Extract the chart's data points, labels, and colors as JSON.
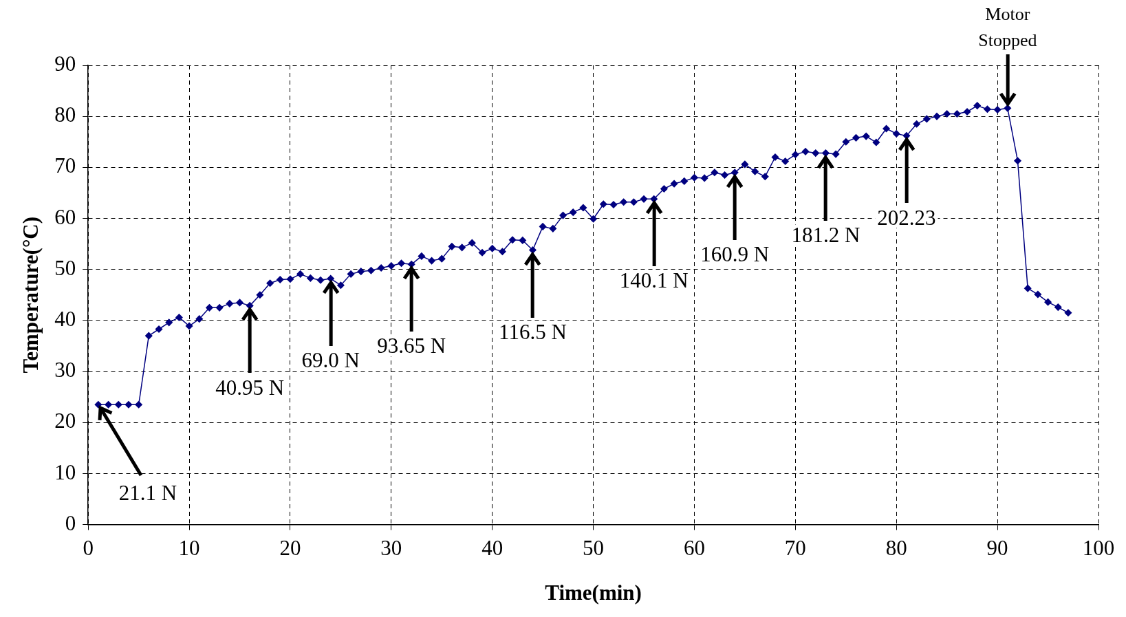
{
  "chart_data": {
    "type": "line",
    "xlabel": "Time(min)",
    "ylabel": "Temperature(°C)",
    "x": [
      1,
      2,
      3,
      4,
      5,
      6,
      7,
      8,
      9,
      10,
      11,
      12,
      13,
      14,
      15,
      16,
      17,
      18,
      19,
      20,
      21,
      22,
      23,
      24,
      25,
      26,
      27,
      28,
      29,
      30,
      31,
      32,
      33,
      34,
      35,
      36,
      37,
      38,
      39,
      40,
      41,
      42,
      43,
      44,
      45,
      46,
      47,
      48,
      49,
      50,
      51,
      52,
      53,
      54,
      55,
      56,
      57,
      58,
      59,
      60,
      61,
      62,
      63,
      64,
      65,
      66,
      67,
      68,
      69,
      70,
      71,
      72,
      73,
      74,
      75,
      76,
      77,
      78,
      79,
      80,
      81,
      82,
      83,
      84,
      85,
      86,
      87,
      88,
      89,
      90,
      91,
      92,
      93,
      94,
      95,
      96,
      97
    ],
    "series": [
      {
        "color": "#000080",
        "values": [
          23.5,
          23.5,
          23.5,
          23.5,
          23.5,
          37,
          38.3,
          39.6,
          40.6,
          38.9,
          40.3,
          42.5,
          42.5,
          43.3,
          43.5,
          42.9,
          45,
          47.3,
          48,
          48.1,
          49.1,
          48.3,
          47.9,
          48.2,
          46.9,
          49.1,
          49.6,
          49.8,
          50.3,
          50.7,
          51.2,
          51,
          52.6,
          51.7,
          52.1,
          54.5,
          54.3,
          55.2,
          53.3,
          54.1,
          53.5,
          55.8,
          55.7,
          53.8,
          58.4,
          58,
          60.6,
          61.2,
          62.1,
          59.9,
          62.8,
          62.7,
          63.2,
          63.2,
          63.8,
          63.8,
          65.8,
          66.8,
          67.3,
          68,
          67.9,
          69,
          68.5,
          69,
          70.6,
          69.2,
          68.2,
          72,
          71.2,
          72.5,
          73.1,
          72.8,
          72.8,
          72.6,
          75,
          75.8,
          76.1,
          74.9,
          77.6,
          76.6,
          76.2,
          78.5,
          79.5,
          80,
          80.5,
          80.5,
          80.9,
          82.1,
          81.4,
          81.3,
          81.6,
          71.3,
          46.3,
          45.1,
          43.6,
          42.6,
          41.5
        ]
      }
    ],
    "xlim": [
      0,
      100
    ],
    "xticks": [
      0,
      10,
      20,
      30,
      40,
      50,
      60,
      70,
      80,
      90,
      100
    ],
    "ylim": [
      0,
      90
    ],
    "yticks": [
      0,
      10,
      20,
      30,
      40,
      50,
      60,
      70,
      80,
      90
    ],
    "grid": true,
    "legend": false,
    "marker": "diamond",
    "line_style": "solid",
    "annotations": [
      {
        "text": "21.1 N",
        "x": 1,
        "y": 23.5
      },
      {
        "text": "40.95 N",
        "x": 16,
        "y": 42.9
      },
      {
        "text": "69.0 N",
        "x": 24,
        "y": 48.2
      },
      {
        "text": "93.65 N",
        "x": 32,
        "y": 51
      },
      {
        "text": "116.5 N",
        "x": 44,
        "y": 53.8
      },
      {
        "text": "140.1 N",
        "x": 56,
        "y": 63.8
      },
      {
        "text": "160.9 N",
        "x": 64,
        "y": 69
      },
      {
        "text": "181.2 N",
        "x": 73,
        "y": 72.8
      },
      {
        "text": "202.23",
        "x": 81,
        "y": 76.2
      },
      {
        "text": "Motor\nStopped",
        "x": 91,
        "y": 81.6
      }
    ]
  }
}
